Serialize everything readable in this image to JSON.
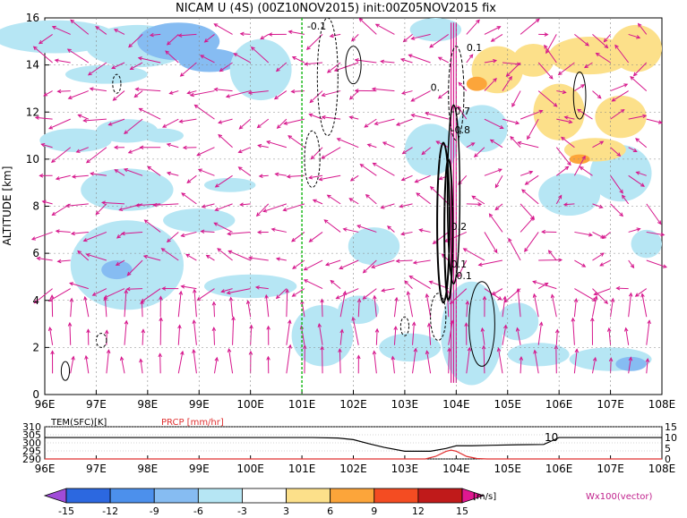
{
  "title": "NICAM U (4S) (00Z10NOV2015) init:00Z05NOV2015 fix",
  "chart_data": [
    {
      "type": "heatmap",
      "title": "NICAM U (4S) (00Z10NOV2015) init:00Z05NOV2015 fix",
      "ylabel": "ALTITUDE [km]",
      "x_ticks": [
        "96E",
        "97E",
        "98E",
        "99E",
        "100E",
        "101E",
        "102E",
        "103E",
        "104E",
        "105E",
        "106E",
        "107E",
        "108E"
      ],
      "x_values": [
        96,
        97,
        98,
        99,
        100,
        101,
        102,
        103,
        104,
        105,
        106,
        107,
        108
      ],
      "xlim": [
        96,
        108
      ],
      "y_ticks": [
        "0",
        "2",
        "4",
        "6",
        "8",
        "10",
        "12",
        "14",
        "16"
      ],
      "y_values": [
        0,
        2,
        4,
        6,
        8,
        10,
        12,
        14,
        16
      ],
      "ylim": [
        0,
        16
      ],
      "grid": true,
      "reference_line_lon": 101,
      "contour_labels": [
        "-0.1",
        "0.1",
        "0.",
        "0.2",
        "0.1",
        "0.1",
        "-0.8",
        "-0.7"
      ],
      "vector_label": "Wx100(vector)"
    },
    {
      "type": "line",
      "series": [
        {
          "name": "TEM(SFC)[K]",
          "color": "#000000"
        },
        {
          "name": "PRCP [mm/hr]",
          "color": "#e03030"
        }
      ],
      "left_ticks": [
        "290",
        "295",
        "300",
        "305",
        "310"
      ],
      "left_values": [
        290,
        295,
        300,
        305,
        310
      ],
      "right_ticks": [
        "0",
        "5",
        "10",
        "15"
      ],
      "right_values": [
        0,
        5,
        10,
        15
      ],
      "x_ticks": [
        "96E",
        "97E",
        "98E",
        "99E",
        "100E",
        "101E",
        "102E",
        "103E",
        "104E",
        "105E",
        "106E",
        "107E",
        "108E"
      ],
      "tem_x": [
        96,
        101.2,
        101.7,
        102.0,
        102.3,
        102.6,
        103.0,
        103.5,
        103.8,
        104.0,
        104.3,
        104.7,
        105.2,
        105.7,
        105.9,
        106.0,
        108
      ],
      "tem_y": [
        303.3,
        303.3,
        303.0,
        302.0,
        299.5,
        297.2,
        294.8,
        294.8,
        296.5,
        298.2,
        298.2,
        298.5,
        298.8,
        299.0,
        301.8,
        303.3,
        303.3
      ],
      "prcp_x": [
        96,
        103.4,
        103.6,
        103.8,
        103.9,
        104.0,
        104.2,
        104.4,
        104.6,
        108
      ],
      "prcp_y": [
        0,
        0,
        1.2,
        3.5,
        4.1,
        3.6,
        1.2,
        0.2,
        0,
        0
      ],
      "annotation": "10"
    }
  ],
  "colorbar": {
    "ticks": [
      "-15",
      "-12",
      "-9",
      "-6",
      "-3",
      "3",
      "6",
      "9",
      "12",
      "15"
    ],
    "colors": [
      "#a04cd8",
      "#2c68e0",
      "#4c90ec",
      "#86bcf2",
      "#b6e6f4",
      "#ffffff",
      "#fce08a",
      "#fca53a",
      "#f44c22",
      "#c01a1a",
      "#e01890"
    ],
    "unit": "[m/s]"
  }
}
